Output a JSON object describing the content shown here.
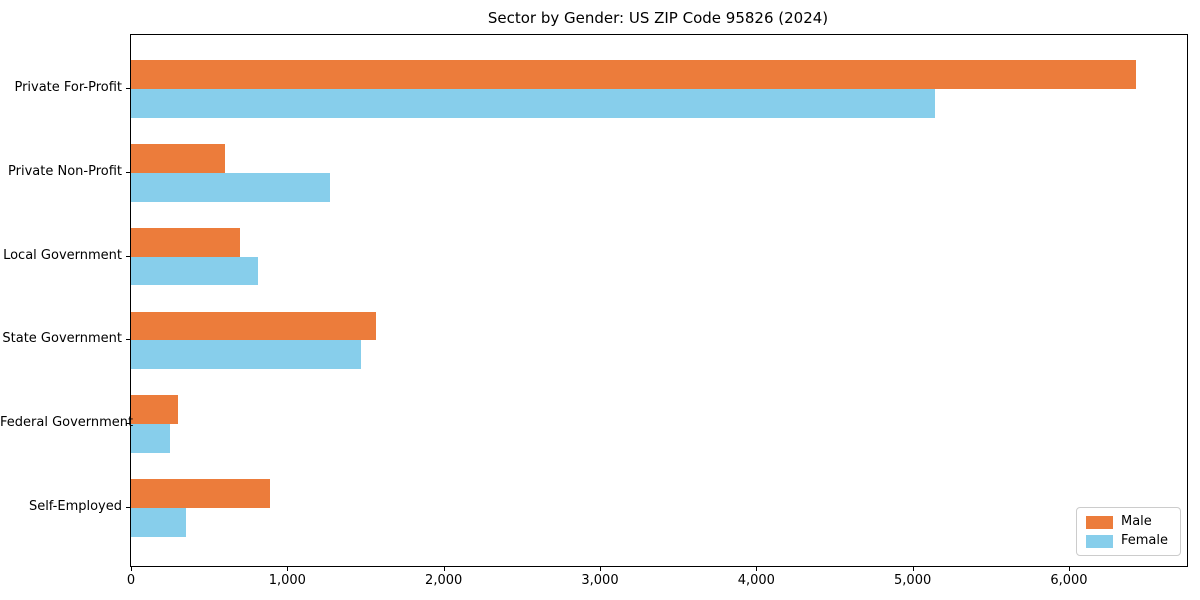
{
  "chart_data": {
    "type": "bar",
    "orientation": "horizontal",
    "title": "Sector by Gender: US ZIP Code 95826 (2024)",
    "categories": [
      "Private For-Profit",
      "Private Non-Profit",
      "Local Government",
      "State Government",
      "Federal Government",
      "Self-Employed"
    ],
    "series": [
      {
        "name": "Male",
        "color": "#ec7c3b",
        "values": [
          6430,
          600,
          700,
          1570,
          300,
          890
        ]
      },
      {
        "name": "Female",
        "color": "#87ceeb",
        "values": [
          5140,
          1270,
          810,
          1470,
          250,
          350
        ]
      }
    ],
    "xlabel": "",
    "ylabel": "",
    "xlim": [
      0,
      6755
    ],
    "xticks": [
      0,
      1000,
      2000,
      3000,
      4000,
      5000,
      6000
    ],
    "xtick_labels": [
      "0",
      "1,000",
      "2,000",
      "3,000",
      "4,000",
      "5,000",
      "6,000"
    ],
    "grid": false,
    "legend_position": "lower right",
    "background_color": "#ffffff",
    "axis_color": "#000000"
  }
}
